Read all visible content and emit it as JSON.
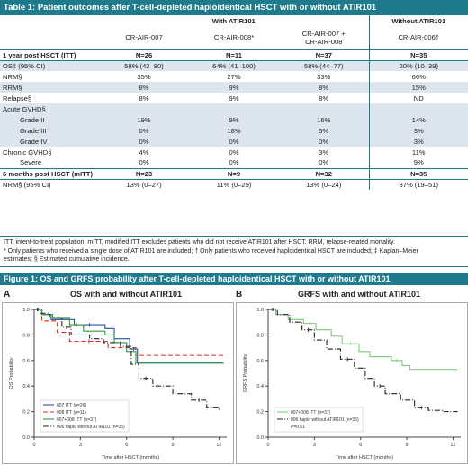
{
  "table": {
    "title": "Table 1: Patient outcomes after T-cell-depleted haploidentical HSCT with or without ATIR101",
    "group_with": "With ATIR101",
    "group_without": "Without ATIR101",
    "col1": "CR-AIR-007",
    "col2": "CR-AIR-008*",
    "col3_line1": "CR-AIR-007 +",
    "col3_line2": "CR-AIR-008",
    "col4": "CR-AIR-006†",
    "rows": [
      {
        "label": "1 year post HSCT (ITT)",
        "v": [
          "N=26",
          "N=11",
          "N=37",
          "N=35"
        ],
        "section": true
      },
      {
        "label": "OS‡ (95% CI)",
        "v": [
          "58% (42–80)",
          "64% (41–100)",
          "58% (44–77)",
          "20% (10–39)"
        ],
        "shade": true
      },
      {
        "label": "NRM§",
        "v": [
          "35%",
          "27%",
          "33%",
          "66%"
        ]
      },
      {
        "label": "RRM§",
        "v": [
          "8%",
          "9%",
          "8%",
          "15%"
        ],
        "shade": true
      },
      {
        "label": "Relapse§",
        "v": [
          "8%",
          "9%",
          "8%",
          "ND"
        ]
      },
      {
        "label": "Acute GVHD§",
        "v": [
          "",
          "",
          "",
          ""
        ],
        "shade": true
      },
      {
        "label": "Grade II",
        "v": [
          "19%",
          "9%",
          "16%",
          "14%"
        ],
        "shade": true,
        "indent": true
      },
      {
        "label": "Grade III",
        "v": [
          "0%",
          "18%",
          "5%",
          "3%"
        ],
        "shade": true,
        "indent": true
      },
      {
        "label": "Grade IV",
        "v": [
          "0%",
          "0%",
          "0%",
          "3%"
        ],
        "shade": true,
        "indent": true
      },
      {
        "label": "Chronic GVHD§",
        "v": [
          "4%",
          "0%",
          "3%",
          "11%"
        ]
      },
      {
        "label": "Severe",
        "v": [
          "0%",
          "0%",
          "0%",
          "9%"
        ],
        "indent": true
      },
      {
        "label": "6 months post HSCT (mITT)",
        "v": [
          "N=23",
          "N=9",
          "N=32",
          "N=35"
        ],
        "section": true
      },
      {
        "label": "NRM§ (95% CI)",
        "v": [
          "13% (0–27)",
          "11% (0–29)",
          "13% (0–24)",
          "37% (19–51)"
        ]
      }
    ],
    "footnote1": "ITT, intent-to-treat population; mITT, modified ITT excludes patients who did not receive ATIR101 after HSCT. RRM, relapse-related mortality.",
    "footnote2": "* Only patients who received a single dose of ATIR101 are included; † Only patients who received haploidentical HSCT are included; ‡ Kaplan–Meier",
    "footnote3": "estimates; § Estimated cumulative incidence."
  },
  "figure": {
    "title": "Figure 1: OS and GRFS probability after T-cell-depleted haploidentical HSCT with or without ATIR101",
    "panelA_letter": "A",
    "panelB_letter": "B",
    "panelA_title": "OS with and without ATIR101",
    "panelB_title": "GRFS with and without ATIR101"
  },
  "chart_data": [
    {
      "type": "line",
      "title": "OS with and without ATIR101",
      "xlabel": "Time after HSCT (months)",
      "ylabel": "OS Probability",
      "xlim": [
        0,
        12.5
      ],
      "ylim": [
        0,
        1.0
      ],
      "xticks": [
        0,
        3,
        6,
        9,
        12
      ],
      "yticks": [
        0.0,
        0.2,
        0.4,
        0.6,
        0.8,
        1.0
      ],
      "series": [
        {
          "name": "007 ITT (n=26)",
          "color": "#2b4fa8",
          "dash": "",
          "x": [
            0,
            0.5,
            1.1,
            2.6,
            4.6,
            5.2,
            6.2,
            6.7,
            12.3
          ],
          "y": [
            1.0,
            0.96,
            0.92,
            0.88,
            0.85,
            0.77,
            0.69,
            0.58,
            0.58
          ]
        },
        {
          "name": "008 ITT (n=11)",
          "color": "#d42a1c",
          "dash": "5,3",
          "x": [
            0,
            0.5,
            1.5,
            2.3,
            4.8,
            6.6,
            12.3
          ],
          "y": [
            1.0,
            0.91,
            0.82,
            0.75,
            0.7,
            0.64,
            0.64
          ]
        },
        {
          "name": "007+008 ITT (n=37)",
          "color": "#2e9a3e",
          "dash": "",
          "x": [
            0,
            0.5,
            1.2,
            2.3,
            3.2,
            4.6,
            5.2,
            6.0,
            6.6,
            12.3
          ],
          "y": [
            1.0,
            0.96,
            0.93,
            0.88,
            0.83,
            0.8,
            0.74,
            0.67,
            0.58,
            0.58
          ]
        },
        {
          "name": "006 haplo without ATIR101 (n=35)",
          "color": "#222222",
          "dash": "6,2,1,2",
          "x": [
            0,
            0.4,
            1.0,
            1.8,
            2.4,
            3.6,
            4.5,
            5.6,
            6.3,
            6.8,
            7.7,
            9.0,
            10.2,
            11.2,
            12.0
          ],
          "y": [
            1.0,
            0.97,
            0.94,
            0.86,
            0.8,
            0.77,
            0.74,
            0.71,
            0.57,
            0.46,
            0.4,
            0.34,
            0.29,
            0.23,
            0.2
          ]
        }
      ],
      "legend": "bottom-left"
    },
    {
      "type": "line",
      "title": "GRFS with and without ATIR101",
      "xlabel": "Time after HSCT (months)",
      "ylabel": "GRFS Probability",
      "xlim": [
        0,
        12.5
      ],
      "ylim": [
        0,
        1.0
      ],
      "xticks": [
        0,
        3,
        6,
        9,
        12
      ],
      "yticks": [
        0.0,
        0.2,
        0.4,
        0.6,
        0.8,
        1.0
      ],
      "series": [
        {
          "name": "007+008 ITT (n=37)",
          "color": "#7fc97f",
          "dash": "",
          "x": [
            0,
            0.5,
            1.3,
            2.3,
            3.1,
            4.1,
            4.8,
            5.9,
            6.6,
            8.0,
            8.7,
            9.2,
            12.3
          ],
          "y": [
            1.0,
            0.96,
            0.92,
            0.89,
            0.84,
            0.79,
            0.73,
            0.67,
            0.63,
            0.6,
            0.56,
            0.53,
            0.53
          ]
        },
        {
          "name": "006 haplo without ATIR101 (n=35)",
          "color": "#222222",
          "dash": "6,2,1,2",
          "x": [
            0,
            0.6,
            1.4,
            2.2,
            3.0,
            3.8,
            4.7,
            5.6,
            6.3,
            6.9,
            7.6,
            8.6,
            9.5,
            10.4,
            11.4,
            12.3
          ],
          "y": [
            1.0,
            0.96,
            0.9,
            0.84,
            0.76,
            0.69,
            0.61,
            0.54,
            0.46,
            0.4,
            0.34,
            0.29,
            0.23,
            0.21,
            0.2,
            0.2
          ]
        }
      ],
      "legend": "bottom-left",
      "annotation": "P=0.01"
    }
  ]
}
